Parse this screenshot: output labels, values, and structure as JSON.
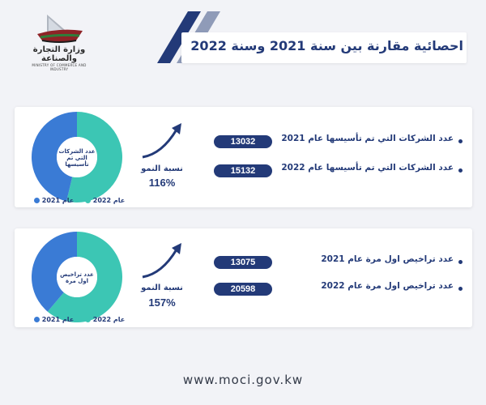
{
  "header": {
    "logo_ar": "وزارة التجارة والصناعة",
    "logo_en": "MINISTRY OF COMMERCE AND INDUSTRY",
    "title": "احصائية مقارنة بين سنة 2021 وسنة 2022"
  },
  "colors": {
    "navy": "#233a78",
    "color_2021": "#3a7bd5",
    "color_2022": "#3cc6b4",
    "background": "#f2f3f7"
  },
  "section1": {
    "rows": [
      {
        "label": "عدد الشركات التي تم تأسيسها عام 2021",
        "value": "13032"
      },
      {
        "label": "عدد الشركات التي تم تأسيسها عام 2022",
        "value": "15132"
      }
    ],
    "growth_label": "نسبة النمو",
    "growth_value": "116%",
    "donut_center": [
      "عدد الشركات",
      "التي تم",
      "تأسيسها"
    ],
    "donut_share_2021": 46.3,
    "legend_2022": "عام 2022",
    "legend_2021": "عام 2021"
  },
  "section2": {
    "rows": [
      {
        "label": "عدد تراخيص اول مرة عام 2021",
        "value": "13075"
      },
      {
        "label": "عدد تراخيص اول مرة عام 2022",
        "value": "20598"
      }
    ],
    "growth_label": "نسبة النمو",
    "growth_value": "157%",
    "donut_center": [
      "عدد تراخيص",
      "اول مرة"
    ],
    "donut_share_2021": 38.8,
    "legend_2022": "عام 2022",
    "legend_2021": "عام 2021"
  },
  "footer": {
    "url": "www.moci.gov.kw"
  }
}
